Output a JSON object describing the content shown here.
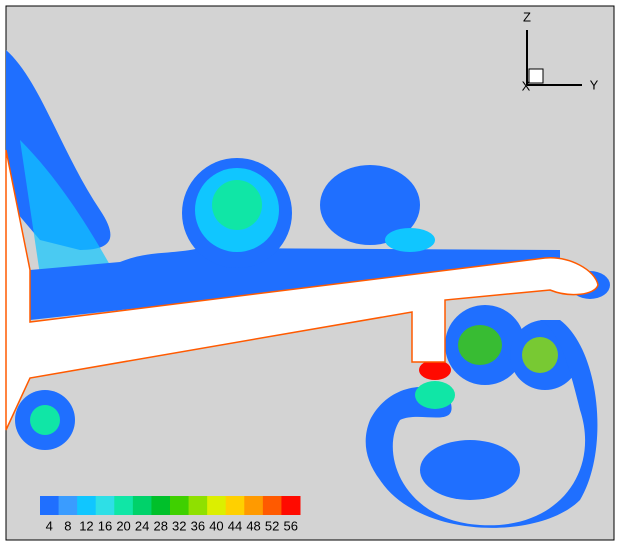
{
  "colorbar": {
    "ticks": [
      4,
      8,
      12,
      16,
      20,
      24,
      28,
      32,
      36,
      40,
      44,
      48,
      52,
      56
    ],
    "colors": [
      "#1f6fff",
      "#3a9cff",
      "#10c6ff",
      "#2edfe6",
      "#10e6a6",
      "#00d26a",
      "#00c02a",
      "#3fd000",
      "#8fe000",
      "#dcef00",
      "#ffd000",
      "#ff9a00",
      "#ff5a00",
      "#ff0a00"
    ]
  },
  "axes": {
    "z": "Z",
    "y": "Y",
    "x": "X"
  }
}
